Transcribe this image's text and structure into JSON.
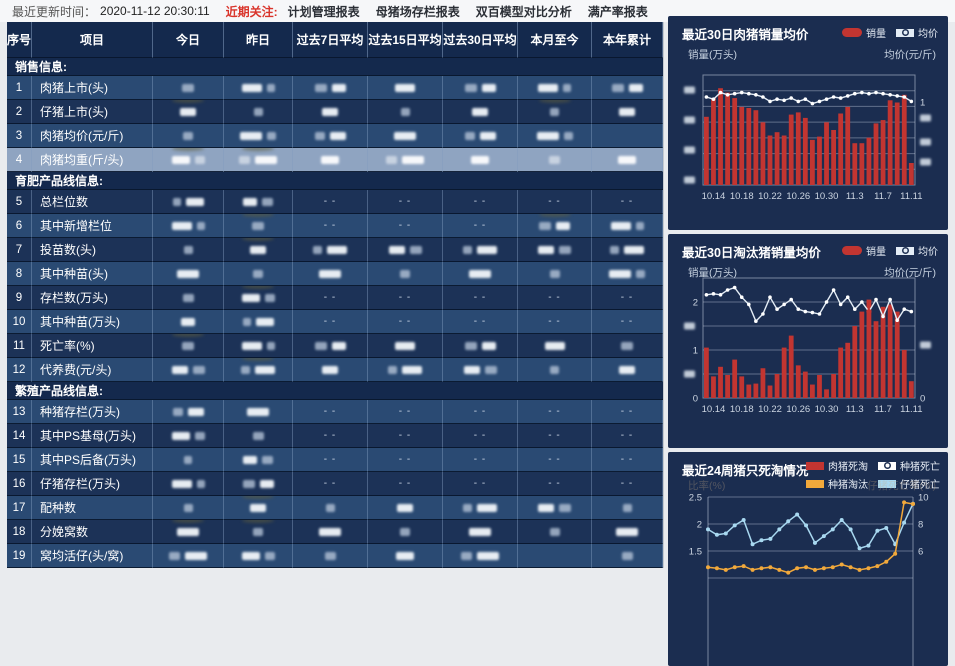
{
  "topbar": {
    "update_label": "最近更新时间：",
    "update_time": "2020-11-12 20:30:11",
    "focus_label": "近期关注:",
    "links": [
      "计划管理报表",
      "母猪场存栏报表",
      "双百模型对比分析",
      "满产率报表"
    ]
  },
  "table": {
    "columns": [
      "序号",
      "项目",
      "今日",
      "昨日",
      "过去7日平均",
      "过去15日平均",
      "过去30日平均",
      "本月至今",
      "本年累计"
    ],
    "highlighted_row": 4,
    "cell_legend": "b1/b2 = one/two blurred redacted value blocks, d = '- -' dashes, empty = blank, s = dark smudge artifact",
    "sections": [
      {
        "label": "销售信息:",
        "rows": [
          {
            "no": 1,
            "label": "肉猪上市(头)",
            "shade": "a",
            "cells": [
              "b1",
              "b2",
              "b2",
              "b1",
              "b2",
              "b2",
              "b2"
            ]
          },
          {
            "no": 2,
            "label": "仔猪上市(头)",
            "shade": "b",
            "cells": [
              "b1s",
              "b1",
              "b1",
              "b1",
              "b1",
              "b1s",
              "b1"
            ]
          },
          {
            "no": 3,
            "label": "肉猪均价(元/斤)",
            "shade": "a",
            "cells": [
              "b1",
              "b2",
              "b2",
              "b1",
              "b2",
              "b2",
              ""
            ]
          },
          {
            "no": 4,
            "label": "肉猪均重(斤/头)",
            "shade": "a",
            "highlighted": true,
            "cells": [
              "b2s",
              "b2s",
              "b1",
              "b2",
              "b1",
              "b1",
              "b1"
            ]
          }
        ]
      },
      {
        "label": "育肥产品线信息:",
        "rows": [
          {
            "no": 5,
            "label": "总栏位数",
            "shade": "b",
            "cells": [
              "b2",
              "b2",
              "d",
              "d",
              "d",
              "d",
              "d"
            ]
          },
          {
            "no": 6,
            "label": "其中新增栏位",
            "shade": "a",
            "cells": [
              "b2",
              "b1s",
              "d",
              "d",
              "d",
              "b2s",
              "b2"
            ]
          },
          {
            "no": 7,
            "label": "投苗数(头)",
            "shade": "b",
            "cells": [
              "b1",
              "b1s",
              "b2",
              "b2",
              "b2",
              "b2",
              "b2"
            ]
          },
          {
            "no": 8,
            "label": "其中种苗(头)",
            "shade": "a",
            "cells": [
              "b1",
              "b1",
              "b1",
              "b1",
              "b1",
              "b1",
              "b2"
            ]
          },
          {
            "no": 9,
            "label": "存栏数(万头)",
            "shade": "b",
            "cells": [
              "b1",
              "b2s",
              "d",
              "d",
              "d",
              "d",
              "d"
            ]
          },
          {
            "no": 10,
            "label": "其中种苗(万头)",
            "shade": "a",
            "cells": [
              "b1",
              "b2",
              "d",
              "d",
              "d",
              "d",
              "d"
            ]
          },
          {
            "no": 11,
            "label": "死亡率(%)",
            "shade": "b",
            "cells": [
              "b1s",
              "b2",
              "b2",
              "b1",
              "b2",
              "b1",
              "b1"
            ]
          },
          {
            "no": 12,
            "label": "代养费(元/头)",
            "shade": "a",
            "cells": [
              "b2",
              "b2s",
              "b1",
              "b2",
              "b2",
              "b1",
              "b1"
            ]
          }
        ]
      },
      {
        "label": "繁殖产品线信息:",
        "rows": [
          {
            "no": 13,
            "label": "种猪存栏(万头)",
            "shade": "a",
            "cells": [
              "b2",
              "b1",
              "d",
              "d",
              "d",
              "d",
              "d"
            ]
          },
          {
            "no": 14,
            "label": "其中PS基母(万头)",
            "shade": "b",
            "cells": [
              "b2",
              "b1",
              "d",
              "d",
              "d",
              "d",
              "d"
            ]
          },
          {
            "no": 15,
            "label": "其中PS后备(万头)",
            "shade": "a",
            "cells": [
              "b1",
              "b2",
              "d",
              "d",
              "d",
              "d",
              "d"
            ]
          },
          {
            "no": 16,
            "label": "仔猪存栏(万头)",
            "shade": "b",
            "cells": [
              "b2",
              "b2",
              "d",
              "d",
              "d",
              "d",
              "d"
            ]
          },
          {
            "no": 17,
            "label": "配种数",
            "shade": "a",
            "cells": [
              "b1",
              "b1s",
              "b1",
              "b1",
              "b2",
              "b2",
              "b1"
            ]
          },
          {
            "no": 18,
            "label": "分娩窝数",
            "shade": "b",
            "cells": [
              "b1s",
              "b1s",
              "b1",
              "b1",
              "b1",
              "b1",
              "b1"
            ]
          },
          {
            "no": 19,
            "label": "窝均活仔(头/窝)",
            "shade": "a",
            "cells": [
              "b2",
              "b2",
              "b1",
              "b1",
              "b2",
              "",
              "b1"
            ]
          }
        ]
      }
    ]
  },
  "colors": {
    "bar_red": "#c23531",
    "line_white": "#e4edf6",
    "orange": "#f2a93b",
    "light_blue": "#a8d8f0",
    "card_bg": "#1b2d50",
    "row_medium": "#2a4a73",
    "row_dark": "#1c3257",
    "row_highlight": "#8fa4c1",
    "focus_red": "#d9342b"
  },
  "charts": [
    {
      "title": "最近30日肉猪销量均价",
      "ylabel_left": "销量(万头)",
      "ylabel_right": "均价(元/斤)",
      "legend": [
        {
          "label": "销量",
          "type": "bar",
          "color": "#c23531"
        },
        {
          "label": "均价",
          "type": "line",
          "color": "#e4edf6"
        }
      ],
      "chart_data": {
        "type": "bar+line",
        "n_points": 30,
        "x_tick_labels": [
          "10.14",
          "10.18",
          "10.22",
          "10.26",
          "10.30",
          "11.3",
          "11.7",
          "11.11"
        ],
        "x_tick_indices": [
          1,
          5,
          9,
          13,
          17,
          21,
          25,
          29
        ],
        "y_axis_values_redacted": true,
        "right_axis_visible_tick": "1",
        "bar_values_relative": [
          0.62,
          0.79,
          0.88,
          0.84,
          0.79,
          0.71,
          0.7,
          0.68,
          0.57,
          0.45,
          0.48,
          0.45,
          0.64,
          0.66,
          0.61,
          0.41,
          0.44,
          0.57,
          0.5,
          0.65,
          0.71,
          0.38,
          0.38,
          0.43,
          0.56,
          0.59,
          0.77,
          0.75,
          0.82,
          0.2
        ],
        "line_values_relative": [
          0.8,
          0.78,
          0.84,
          0.82,
          0.83,
          0.84,
          0.83,
          0.82,
          0.8,
          0.76,
          0.78,
          0.77,
          0.79,
          0.76,
          0.78,
          0.74,
          0.76,
          0.78,
          0.8,
          0.79,
          0.81,
          0.83,
          0.84,
          0.83,
          0.84,
          0.83,
          0.82,
          0.81,
          0.8,
          0.76
        ]
      }
    },
    {
      "title": "最近30日淘汰猪销量均价",
      "ylabel_left": "销量(万头)",
      "ylabel_right": "均价(元/斤)",
      "legend": [
        {
          "label": "销量",
          "type": "bar",
          "color": "#c23531"
        },
        {
          "label": "均价",
          "type": "line",
          "color": "#e4edf6"
        }
      ],
      "chart_data": {
        "type": "bar+line",
        "n_points": 30,
        "x_tick_labels": [
          "10.14",
          "10.18",
          "10.22",
          "10.26",
          "10.30",
          "11.3",
          "11.7",
          "11.11"
        ],
        "x_tick_indices": [
          1,
          5,
          9,
          13,
          17,
          21,
          25,
          29
        ],
        "ylim_left": [
          0,
          2.5
        ],
        "left_visible_ticks": [
          "0",
          "1",
          "2"
        ],
        "right_visible_ticks": [
          "0"
        ],
        "bar_values": [
          1.05,
          0.45,
          0.65,
          0.48,
          0.8,
          0.45,
          0.28,
          0.3,
          0.62,
          0.26,
          0.5,
          1.05,
          1.3,
          0.68,
          0.55,
          0.28,
          0.48,
          0.18,
          0.5,
          1.05,
          1.15,
          1.5,
          1.8,
          2.05,
          1.6,
          1.9,
          1.95,
          1.8,
          1.0,
          0.35
        ],
        "line_values_left_scale": [
          2.15,
          2.17,
          2.15,
          2.25,
          2.3,
          2.1,
          1.95,
          1.6,
          1.75,
          2.1,
          1.85,
          1.95,
          2.05,
          1.85,
          1.8,
          1.78,
          1.75,
          2.0,
          2.25,
          1.95,
          2.1,
          1.85,
          2.0,
          1.8,
          2.05,
          1.7,
          2.05,
          1.62,
          1.85,
          1.8
        ],
        "highlight_point_index": 23,
        "highlight_point_color": "#c23531"
      }
    },
    {
      "title": "最近24周猪只死淘情况",
      "ylabel_left": "比率(%)",
      "ylabel_right": "仔猪死亡率(%)",
      "axis_labels_faded": true,
      "legend": [
        {
          "label": "肉猪死淘",
          "type": "dotline",
          "color": "#c23531"
        },
        {
          "label": "种猪死亡",
          "type": "dotline",
          "color": "#ffffff"
        },
        {
          "label": "种猪淘汰",
          "type": "dotline",
          "color": "#f2a93b"
        },
        {
          "label": "仔猪死亡",
          "type": "dotline",
          "color": "#a8d8f0"
        }
      ],
      "chart_data": {
        "type": "line",
        "n_points": 24,
        "left_ticks": [
          1.5,
          2,
          2.5
        ],
        "right_ticks": [
          6,
          8,
          10
        ],
        "series": [
          {
            "name": "仔猪死亡",
            "axis": "right",
            "color": "#a8d8f0",
            "values": [
              7.6,
              7.2,
              7.3,
              7.9,
              8.3,
              6.5,
              6.8,
              6.9,
              7.6,
              8.2,
              8.7,
              7.9,
              6.6,
              7.1,
              7.6,
              8.3,
              7.6,
              6.2,
              6.4,
              7.5,
              7.7,
              6.5,
              8.1,
              9.5
            ]
          },
          {
            "name": "种猪淘汰",
            "axis": "left",
            "color": "#f2a93b",
            "values": [
              1.2,
              1.18,
              1.15,
              1.2,
              1.22,
              1.15,
              1.18,
              1.2,
              1.15,
              1.1,
              1.18,
              1.2,
              1.15,
              1.18,
              1.2,
              1.25,
              1.2,
              1.15,
              1.18,
              1.22,
              1.3,
              1.45,
              2.4,
              2.37
            ]
          },
          {
            "name": "肉猪死淘",
            "axis": "left",
            "color": "#c23531",
            "values": [],
            "note": "below visible crop"
          },
          {
            "name": "种猪死亡",
            "axis": "left",
            "color": "#ffffff",
            "values": [],
            "note": "below visible crop"
          }
        ]
      }
    }
  ]
}
